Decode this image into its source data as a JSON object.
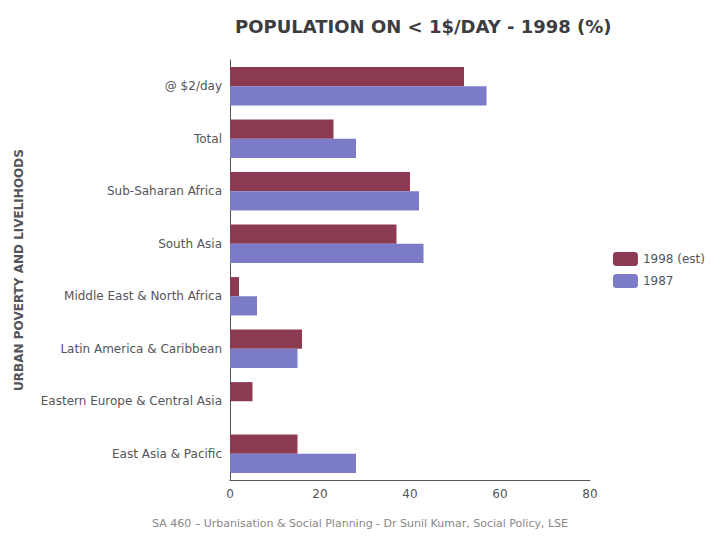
{
  "chart_data": {
    "type": "bar",
    "orientation": "horizontal",
    "title": "POPULATION ON < 1$/DAY - 1998 (%)",
    "ylabel": "URBAN POVERTY AND LIVELIHOODS",
    "annotations": [
      "SA 460 – Urbanisation & Social Planning - Dr Sunil Kumar, Social Policy, LSE"
    ],
    "categories": [
      "@ $2/day",
      "Total",
      "Sub-Saharan Africa",
      "South Asia",
      "Middle East & North Africa",
      "Latin America & Caribbean",
      "Eastern Europe & Central Asia",
      "East Asia & Pacific"
    ],
    "series": [
      {
        "name": "1998 (est)",
        "color": "#8B3A52",
        "values": [
          52,
          23,
          40,
          37,
          2,
          16,
          5,
          15
        ]
      },
      {
        "name": "1987",
        "color": "#7B7BC8",
        "values": [
          57,
          28,
          42,
          43,
          6,
          15,
          0,
          28
        ]
      }
    ],
    "xlim": [
      0,
      80
    ],
    "xticks": [
      0,
      20,
      40,
      60,
      80
    ],
    "grid": false,
    "legend": "right"
  }
}
